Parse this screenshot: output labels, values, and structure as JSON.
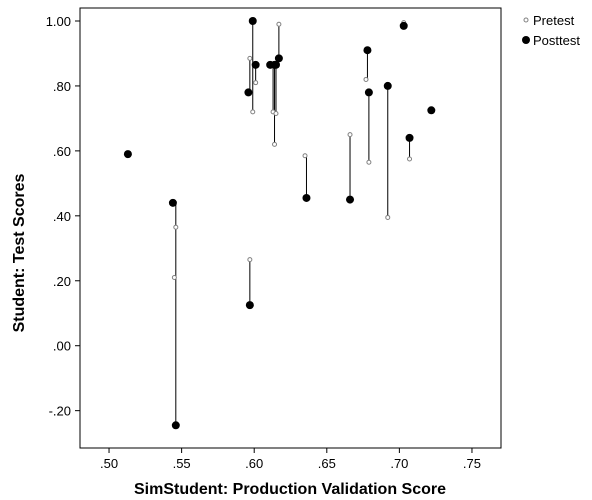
{
  "chart_data": {
    "type": "scatter",
    "xlabel": "SimStudent: Production Validation Score",
    "ylabel": "Student: Test Scores",
    "xlim": [
      0.48,
      0.77
    ],
    "ylim": [
      -0.315,
      1.04
    ],
    "x_ticks": [
      0.5,
      0.55,
      0.6,
      0.65,
      0.7,
      0.75
    ],
    "x_tick_labels": [
      ".50",
      ".55",
      ".60",
      ".65",
      ".70",
      ".75"
    ],
    "y_ticks": [
      -0.2,
      0.0,
      0.2,
      0.4,
      0.6,
      0.8,
      1.0
    ],
    "y_tick_labels": [
      "-.20",
      ".00",
      ".20",
      ".40",
      ".60",
      ".80",
      "1.00"
    ],
    "grid": false,
    "legend_position": "top-right-outside",
    "series": [
      {
        "name": "Pretest",
        "marker": "small-open-circle",
        "color": "#808080",
        "points": [
          {
            "x": 0.545,
            "y": 0.21
          },
          {
            "x": 0.546,
            "y": 0.365
          },
          {
            "x": 0.597,
            "y": 0.265
          },
          {
            "x": 0.597,
            "y": 0.885
          },
          {
            "x": 0.599,
            "y": 0.72
          },
          {
            "x": 0.601,
            "y": 0.81
          },
          {
            "x": 0.613,
            "y": 0.72
          },
          {
            "x": 0.614,
            "y": 0.62
          },
          {
            "x": 0.615,
            "y": 0.715
          },
          {
            "x": 0.617,
            "y": 0.99
          },
          {
            "x": 0.635,
            "y": 0.585
          },
          {
            "x": 0.666,
            "y": 0.65
          },
          {
            "x": 0.677,
            "y": 0.82
          },
          {
            "x": 0.679,
            "y": 0.565
          },
          {
            "x": 0.692,
            "y": 0.395
          },
          {
            "x": 0.703,
            "y": 0.995
          },
          {
            "x": 0.707,
            "y": 0.575
          }
        ]
      },
      {
        "name": "Posttest",
        "marker": "filled-circle",
        "color": "#000000",
        "points": [
          {
            "x": 0.513,
            "y": 0.59
          },
          {
            "x": 0.544,
            "y": 0.44
          },
          {
            "x": 0.546,
            "y": -0.245
          },
          {
            "x": 0.597,
            "y": 0.125
          },
          {
            "x": 0.596,
            "y": 0.78
          },
          {
            "x": 0.599,
            "y": 1.0
          },
          {
            "x": 0.601,
            "y": 0.865
          },
          {
            "x": 0.611,
            "y": 0.865
          },
          {
            "x": 0.614,
            "y": 0.865
          },
          {
            "x": 0.615,
            "y": 0.865
          },
          {
            "x": 0.617,
            "y": 0.885
          },
          {
            "x": 0.636,
            "y": 0.455
          },
          {
            "x": 0.666,
            "y": 0.45
          },
          {
            "x": 0.678,
            "y": 0.91
          },
          {
            "x": 0.679,
            "y": 0.78
          },
          {
            "x": 0.692,
            "y": 0.8
          },
          {
            "x": 0.703,
            "y": 0.985
          },
          {
            "x": 0.707,
            "y": 0.64
          },
          {
            "x": 0.722,
            "y": 0.725
          }
        ]
      }
    ],
    "links": [
      {
        "x": 0.546,
        "y1": 0.44,
        "y2": -0.245
      },
      {
        "x": 0.597,
        "y1": 0.265,
        "y2": 0.125
      },
      {
        "x": 0.597,
        "y1": 0.885,
        "y2": 0.78
      },
      {
        "x": 0.599,
        "y1": 1.0,
        "y2": 0.72
      },
      {
        "x": 0.601,
        "y1": 0.865,
        "y2": 0.81
      },
      {
        "x": 0.613,
        "y1": 0.865,
        "y2": 0.72
      },
      {
        "x": 0.614,
        "y1": 0.865,
        "y2": 0.62
      },
      {
        "x": 0.615,
        "y1": 0.865,
        "y2": 0.715
      },
      {
        "x": 0.617,
        "y1": 0.99,
        "y2": 0.885
      },
      {
        "x": 0.636,
        "y1": 0.585,
        "y2": 0.455
      },
      {
        "x": 0.666,
        "y1": 0.65,
        "y2": 0.45
      },
      {
        "x": 0.678,
        "y1": 0.91,
        "y2": 0.82
      },
      {
        "x": 0.679,
        "y1": 0.78,
        "y2": 0.565
      },
      {
        "x": 0.692,
        "y1": 0.8,
        "y2": 0.395
      },
      {
        "x": 0.703,
        "y1": 0.995,
        "y2": 0.985
      },
      {
        "x": 0.707,
        "y1": 0.64,
        "y2": 0.575
      }
    ]
  }
}
